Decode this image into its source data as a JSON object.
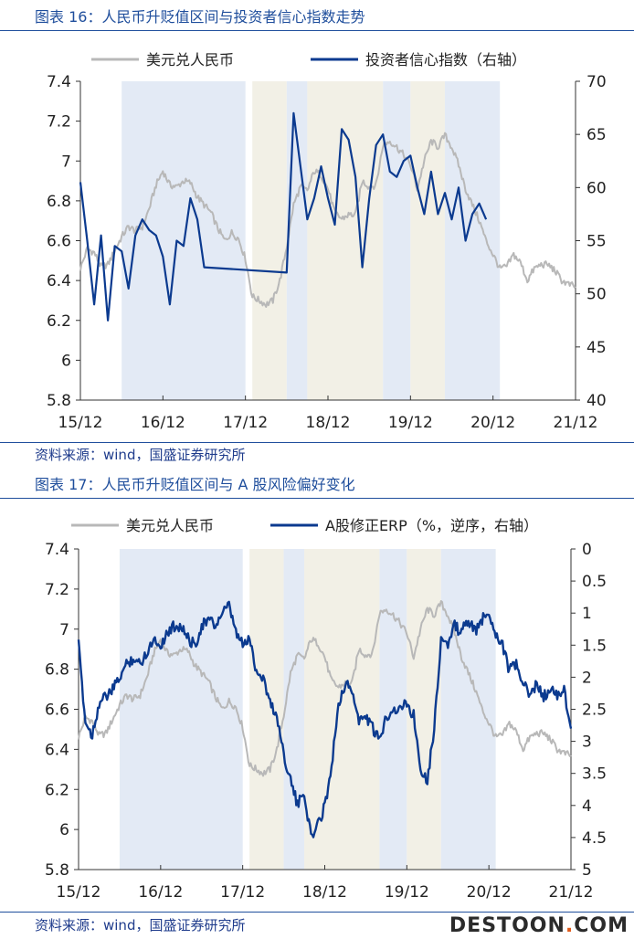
{
  "figure1": {
    "title": "图表 16：人民币升贬值区间与投资者信心指数走势",
    "source": "资料来源：wind，国盛证券研究所"
  },
  "figure2": {
    "title": "图表 17：人民币升贬值区间与 A 股风险偏好变化",
    "source": "资料来源：wind，国盛证券研究所"
  },
  "watermark": "DESTOON.COM",
  "colors": {
    "usdcny": "#b8b8b8",
    "series2": "#0b3a8f",
    "shade_blue": "#e3eaf5",
    "shade_beige": "#f2f0e6"
  },
  "chart_data": [
    {
      "type": "line",
      "title": "",
      "x_ticks": [
        "15/12",
        "16/12",
        "17/12",
        "18/12",
        "19/12",
        "20/12",
        "21/12"
      ],
      "left_axis": {
        "ylim": [
          5.8,
          7.4
        ],
        "ticks": [
          "7.4",
          "7.2",
          "7",
          "6.8",
          "6.6",
          "6.4",
          "6.2",
          "6",
          "5.8"
        ]
      },
      "right_axis": {
        "ylim": [
          40,
          70
        ],
        "ticks": [
          "70",
          "65",
          "60",
          "55",
          "50",
          "45",
          "40"
        ]
      },
      "grid": false,
      "legend_position": "top",
      "shaded_periods": [
        {
          "start": "2016-06",
          "end": "2017-12",
          "color": "blue"
        },
        {
          "start": "2018-01",
          "end": "2018-06",
          "color": "beige"
        },
        {
          "start": "2018-06",
          "end": "2018-09",
          "color": "blue"
        },
        {
          "start": "2018-09",
          "end": "2019-08",
          "color": "beige"
        },
        {
          "start": "2019-08",
          "end": "2019-12",
          "color": "blue"
        },
        {
          "start": "2019-12",
          "end": "2020-05",
          "color": "beige"
        },
        {
          "start": "2020-05",
          "end": "2021-01",
          "color": "blue"
        }
      ],
      "series": [
        {
          "name": "美元兑人民币",
          "axis": "left",
          "points": [
            [
              "2015-12",
              6.46
            ],
            [
              "2016-01",
              6.56
            ],
            [
              "2016-02",
              6.54
            ],
            [
              "2016-03",
              6.47
            ],
            [
              "2016-04",
              6.48
            ],
            [
              "2016-05",
              6.55
            ],
            [
              "2016-06",
              6.62
            ],
            [
              "2016-07",
              6.67
            ],
            [
              "2016-08",
              6.65
            ],
            [
              "2016-09",
              6.67
            ],
            [
              "2016-10",
              6.76
            ],
            [
              "2016-11",
              6.88
            ],
            [
              "2016-12",
              6.95
            ],
            [
              "2017-01",
              6.88
            ],
            [
              "2017-02",
              6.87
            ],
            [
              "2017-03",
              6.9
            ],
            [
              "2017-04",
              6.89
            ],
            [
              "2017-05",
              6.82
            ],
            [
              "2017-06",
              6.78
            ],
            [
              "2017-07",
              6.74
            ],
            [
              "2017-08",
              6.66
            ],
            [
              "2017-09",
              6.6
            ],
            [
              "2017-10",
              6.64
            ],
            [
              "2017-11",
              6.61
            ],
            [
              "2017-12",
              6.51
            ],
            [
              "2018-01",
              6.32
            ],
            [
              "2018-02",
              6.3
            ],
            [
              "2018-03",
              6.28
            ],
            [
              "2018-04",
              6.3
            ],
            [
              "2018-05",
              6.4
            ],
            [
              "2018-06",
              6.57
            ],
            [
              "2018-07",
              6.78
            ],
            [
              "2018-08",
              6.87
            ],
            [
              "2018-09",
              6.85
            ],
            [
              "2018-10",
              6.95
            ],
            [
              "2018-11",
              6.93
            ],
            [
              "2018-12",
              6.86
            ],
            [
              "2019-01",
              6.74
            ],
            [
              "2019-02",
              6.71
            ],
            [
              "2019-03",
              6.73
            ],
            [
              "2019-04",
              6.73
            ],
            [
              "2019-05",
              6.9
            ],
            [
              "2019-06",
              6.87
            ],
            [
              "2019-07",
              6.88
            ],
            [
              "2019-08",
              7.08
            ],
            [
              "2019-09",
              7.1
            ],
            [
              "2019-10",
              7.07
            ],
            [
              "2019-11",
              7.03
            ],
            [
              "2019-12",
              6.98
            ],
            [
              "2020-01",
              6.86
            ],
            [
              "2020-02",
              7.0
            ],
            [
              "2020-03",
              7.1
            ],
            [
              "2020-04",
              7.07
            ],
            [
              "2020-05",
              7.13
            ],
            [
              "2020-06",
              7.07
            ],
            [
              "2020-07",
              6.98
            ],
            [
              "2020-08",
              6.86
            ],
            [
              "2020-09",
              6.78
            ],
            [
              "2020-10",
              6.7
            ],
            [
              "2020-11",
              6.6
            ],
            [
              "2020-12",
              6.53
            ],
            [
              "2021-01",
              6.46
            ],
            [
              "2021-02",
              6.47
            ],
            [
              "2021-03",
              6.53
            ],
            [
              "2021-04",
              6.49
            ],
            [
              "2021-05",
              6.4
            ],
            [
              "2021-06",
              6.46
            ],
            [
              "2021-07",
              6.48
            ],
            [
              "2021-08",
              6.48
            ],
            [
              "2021-09",
              6.45
            ],
            [
              "2021-10",
              6.4
            ],
            [
              "2021-11",
              6.38
            ],
            [
              "2021-12",
              6.37
            ]
          ]
        },
        {
          "name": "投资者信心指数（右轴）",
          "axis": "right",
          "points": [
            [
              "2015-12",
              60.5
            ],
            [
              "2016-01",
              55.0
            ],
            [
              "2016-02",
              49.0
            ],
            [
              "2016-03",
              55.5
            ],
            [
              "2016-04",
              47.5
            ],
            [
              "2016-05",
              54.5
            ],
            [
              "2016-06",
              54.0
            ],
            [
              "2016-07",
              50.5
            ],
            [
              "2016-08",
              55.5
            ],
            [
              "2016-09",
              57.0
            ],
            [
              "2016-10",
              56.0
            ],
            [
              "2016-11",
              55.5
            ],
            [
              "2016-12",
              53.5
            ],
            [
              "2017-01",
              49.0
            ],
            [
              "2017-02",
              55.0
            ],
            [
              "2017-03",
              54.5
            ],
            [
              "2017-04",
              59.0
            ],
            [
              "2017-05",
              57.0
            ],
            [
              "2017-06",
              52.5
            ],
            [
              "2018-06",
              52.0
            ],
            [
              "2018-07",
              67.0
            ],
            [
              "2018-08",
              62.0
            ],
            [
              "2018-09",
              57.0
            ],
            [
              "2018-10",
              59.0
            ],
            [
              "2018-11",
              62.0
            ],
            [
              "2018-12",
              59.0
            ],
            [
              "2019-01",
              56.5
            ],
            [
              "2019-02",
              65.5
            ],
            [
              "2019-03",
              64.5
            ],
            [
              "2019-04",
              61.0
            ],
            [
              "2019-05",
              52.5
            ],
            [
              "2019-06",
              59.0
            ],
            [
              "2019-07",
              64.0
            ],
            [
              "2019-08",
              65.0
            ],
            [
              "2019-09",
              61.5
            ],
            [
              "2019-10",
              61.0
            ],
            [
              "2019-11",
              62.5
            ],
            [
              "2019-12",
              63.0
            ],
            [
              "2020-01",
              60.0
            ],
            [
              "2020-02",
              57.5
            ],
            [
              "2020-03",
              61.5
            ],
            [
              "2020-04",
              57.5
            ],
            [
              "2020-05",
              59.5
            ],
            [
              "2020-06",
              57.0
            ],
            [
              "2020-07",
              60.0
            ],
            [
              "2020-08",
              55.0
            ],
            [
              "2020-09",
              57.5
            ],
            [
              "2020-10",
              58.5
            ],
            [
              "2020-11",
              57.0
            ]
          ]
        }
      ]
    },
    {
      "type": "line",
      "title": "",
      "x_ticks": [
        "15/12",
        "16/12",
        "17/12",
        "18/12",
        "19/12",
        "20/12",
        "21/12"
      ],
      "left_axis": {
        "ylim": [
          5.8,
          7.4
        ],
        "ticks": [
          "7.4",
          "7.2",
          "7",
          "6.8",
          "6.6",
          "6.4",
          "6.2",
          "6",
          "5.8"
        ]
      },
      "right_axis": {
        "ylim": [
          5,
          0
        ],
        "inverted": true,
        "ticks": [
          "0",
          "0.5",
          "1",
          "1.5",
          "2",
          "2.5",
          "3",
          "3.5",
          "4",
          "4.5",
          "5"
        ]
      },
      "grid": false,
      "legend_position": "top",
      "shaded_periods": [
        {
          "start": "2016-06",
          "end": "2017-12",
          "color": "blue"
        },
        {
          "start": "2018-01",
          "end": "2018-06",
          "color": "beige"
        },
        {
          "start": "2018-06",
          "end": "2018-09",
          "color": "blue"
        },
        {
          "start": "2018-09",
          "end": "2019-08",
          "color": "beige"
        },
        {
          "start": "2019-08",
          "end": "2019-12",
          "color": "blue"
        },
        {
          "start": "2019-12",
          "end": "2020-05",
          "color": "beige"
        },
        {
          "start": "2020-05",
          "end": "2021-01",
          "color": "blue"
        }
      ],
      "series": [
        {
          "name": "美元兑人民币",
          "axis": "left",
          "points": "same as figure 16"
        },
        {
          "name": "A股修正ERP（%，逆序，右轴）",
          "axis": "right",
          "points": [
            [
              "2015-12",
              1.5
            ],
            [
              "2016-01",
              2.7
            ],
            [
              "2016-02",
              2.9
            ],
            [
              "2016-03",
              2.4
            ],
            [
              "2016-04",
              2.3
            ],
            [
              "2016-05",
              2.2
            ],
            [
              "2016-06",
              2.0
            ],
            [
              "2016-07",
              1.8
            ],
            [
              "2016-08",
              1.7
            ],
            [
              "2016-09",
              1.8
            ],
            [
              "2016-10",
              1.6
            ],
            [
              "2016-11",
              1.4
            ],
            [
              "2016-12",
              1.5
            ],
            [
              "2017-01",
              1.3
            ],
            [
              "2017-02",
              1.2
            ],
            [
              "2017-03",
              1.2
            ],
            [
              "2017-04",
              1.4
            ],
            [
              "2017-05",
              1.5
            ],
            [
              "2017-06",
              1.2
            ],
            [
              "2017-07",
              1.1
            ],
            [
              "2017-08",
              1.2
            ],
            [
              "2017-09",
              1.0
            ],
            [
              "2017-10",
              0.9
            ],
            [
              "2017-11",
              1.3
            ],
            [
              "2017-12",
              1.5
            ],
            [
              "2018-01",
              1.4
            ],
            [
              "2018-02",
              1.9
            ],
            [
              "2018-03",
              2.0
            ],
            [
              "2018-04",
              2.4
            ],
            [
              "2018-05",
              2.6
            ],
            [
              "2018-06",
              3.2
            ],
            [
              "2018-07",
              3.6
            ],
            [
              "2018-08",
              4.0
            ],
            [
              "2018-09",
              3.8
            ],
            [
              "2018-10",
              4.5
            ],
            [
              "2018-11",
              4.3
            ],
            [
              "2018-12",
              4.0
            ],
            [
              "2019-01",
              3.4
            ],
            [
              "2019-02",
              2.4
            ],
            [
              "2019-03",
              2.1
            ],
            [
              "2019-04",
              2.2
            ],
            [
              "2019-05",
              2.7
            ],
            [
              "2019-06",
              2.6
            ],
            [
              "2019-07",
              2.8
            ],
            [
              "2019-08",
              3.0
            ],
            [
              "2019-09",
              2.6
            ],
            [
              "2019-10",
              2.5
            ],
            [
              "2019-11",
              2.5
            ],
            [
              "2019-12",
              2.4
            ],
            [
              "2020-01",
              2.6
            ],
            [
              "2020-02",
              3.4
            ],
            [
              "2020-03",
              3.6
            ],
            [
              "2020-04",
              2.8
            ],
            [
              "2020-05",
              1.4
            ],
            [
              "2020-06",
              1.5
            ],
            [
              "2020-07",
              1.2
            ],
            [
              "2020-08",
              1.3
            ],
            [
              "2020-09",
              1.1
            ],
            [
              "2020-10",
              1.3
            ],
            [
              "2020-11",
              1.1
            ],
            [
              "2020-12",
              1.0
            ],
            [
              "2021-01",
              1.3
            ],
            [
              "2021-02",
              1.5
            ],
            [
              "2021-03",
              1.9
            ],
            [
              "2021-04",
              1.8
            ],
            [
              "2021-05",
              2.1
            ],
            [
              "2021-06",
              2.3
            ],
            [
              "2021-07",
              2.1
            ],
            [
              "2021-08",
              2.3
            ],
            [
              "2021-09",
              2.2
            ],
            [
              "2021-10",
              2.3
            ],
            [
              "2021-11",
              2.2
            ],
            [
              "2021-12",
              2.8
            ]
          ]
        }
      ]
    }
  ]
}
